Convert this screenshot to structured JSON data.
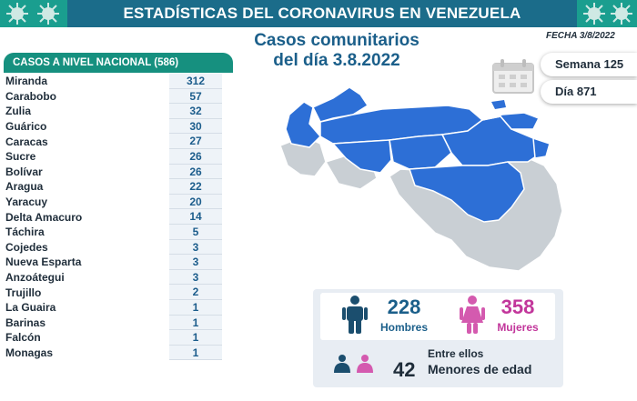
{
  "header": {
    "title": "ESTADÍSTICAS DEL CORONAVIRUS EN VENEZUELA"
  },
  "table": {
    "header": "CASOS A NIVEL NACIONAL (586)",
    "rows": [
      {
        "state": "Miranda",
        "cases": "312"
      },
      {
        "state": "Carabobo",
        "cases": "57"
      },
      {
        "state": "Zulia",
        "cases": "32"
      },
      {
        "state": "Guárico",
        "cases": "30"
      },
      {
        "state": "Caracas",
        "cases": "27"
      },
      {
        "state": "Sucre",
        "cases": "26"
      },
      {
        "state": "Bolívar",
        "cases": "26"
      },
      {
        "state": "Aragua",
        "cases": "22"
      },
      {
        "state": "Yaracuy",
        "cases": "20"
      },
      {
        "state": "Delta Amacuro",
        "cases": "14"
      },
      {
        "state": "Táchira",
        "cases": "5"
      },
      {
        "state": "Cojedes",
        "cases": "3"
      },
      {
        "state": "Nueva Esparta",
        "cases": "3"
      },
      {
        "state": "Anzoátegui",
        "cases": "3"
      },
      {
        "state": "Trujillo",
        "cases": "2"
      },
      {
        "state": "La Guaira",
        "cases": "1"
      },
      {
        "state": "Barinas",
        "cases": "1"
      },
      {
        "state": "Falcón",
        "cases": "1"
      },
      {
        "state": "Monagas",
        "cases": "1"
      }
    ]
  },
  "title": {
    "line1": "Casos comunitarios",
    "line2": "del día 3.8.2022"
  },
  "fecha": "FECHA 3/8/2022",
  "week": "Semana 125",
  "day": "Día 871",
  "stats": {
    "men_count": "228",
    "men_label": "Hombres",
    "women_count": "358",
    "women_label": "Mujeres",
    "among_label": "Entre ellos",
    "minors_count": "42",
    "minors_label": "Menores de edad"
  },
  "colors": {
    "banner": "#1b6c8a",
    "accent": "#16907f",
    "men": "#1b5f8a",
    "women": "#c2369b",
    "map_highlight": "#2d6fd6",
    "map_base": "#c9cfd4"
  }
}
